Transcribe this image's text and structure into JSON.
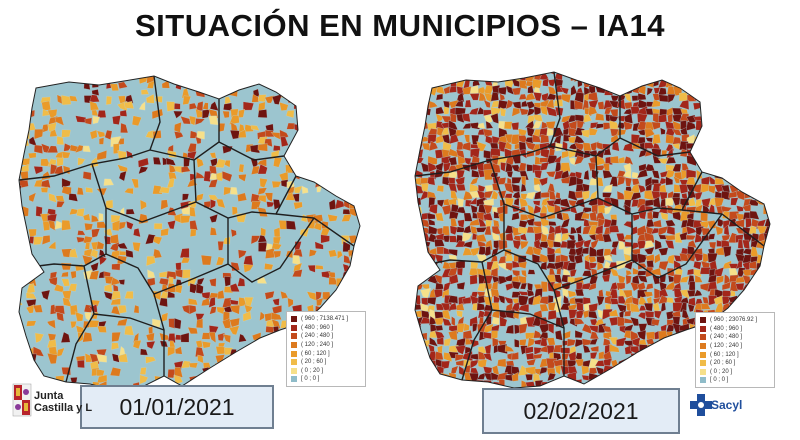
{
  "title": "SITUACIÓN EN MUNICIPIOS – IA14",
  "colors": {
    "background_map": "#9cc5cf",
    "province_border": "#1f1f1f",
    "date_box_bg": "#e3ecf6",
    "brand_blue": "#1f4e9c"
  },
  "maps": [
    {
      "date_label": "01/01/2021",
      "legend": {
        "items": [
          {
            "label": "( 960 ; 7138.471 ]",
            "color": "#6e1410"
          },
          {
            "label": "( 480 ; 960 ]",
            "color": "#a3261a"
          },
          {
            "label": "( 240 ; 480 ]",
            "color": "#c34a1c"
          },
          {
            "label": "( 120 ; 240 ]",
            "color": "#dd7a1e"
          },
          {
            "label": "( 60 ; 120 ]",
            "color": "#ea9b2a"
          },
          {
            "label": "( 20 ; 60 ]",
            "color": "#f0bc48"
          },
          {
            "label": "( 0 ; 20 ]",
            "color": "#f6e08a"
          },
          {
            "label": "[ 0 ; 0 ]",
            "color": "#8fbcc9"
          }
        ]
      }
    },
    {
      "date_label": "02/02/2021",
      "legend": {
        "items": [
          {
            "label": "( 960 ; 23076.92 ]",
            "color": "#6e1410"
          },
          {
            "label": "( 480 ; 960 ]",
            "color": "#a3261a"
          },
          {
            "label": "( 240 ; 480 ]",
            "color": "#c34a1c"
          },
          {
            "label": "( 120 ; 240 ]",
            "color": "#dd7a1e"
          },
          {
            "label": "( 60 ; 120 ]",
            "color": "#ea9b2a"
          },
          {
            "label": "( 20 ; 60 ]",
            "color": "#f0bc48"
          },
          {
            "label": "( 0 ; 20 ]",
            "color": "#f6e08a"
          },
          {
            "label": "[ 0 ; 0 ]",
            "color": "#8fbcc9"
          }
        ]
      }
    }
  ],
  "logos": {
    "left": {
      "line1": "Junta",
      "line2": "Castilla y L"
    },
    "right": {
      "name": "Sacyl"
    }
  }
}
